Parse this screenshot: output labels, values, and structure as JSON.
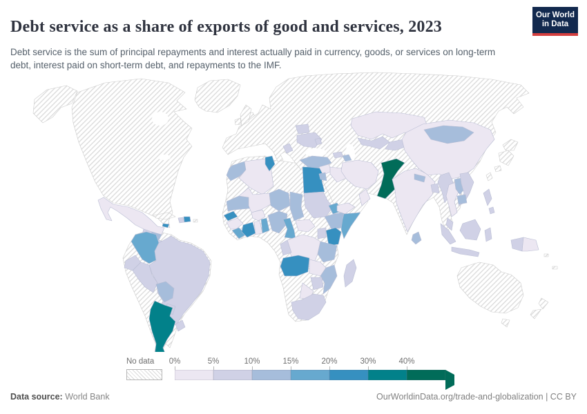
{
  "header": {
    "title": "Debt service as a share of exports of good and services, 2023",
    "subtitle": "Debt service is the sum of principal repayments and interest actually paid in currency, goods, or services on long-term debt, interest paid on short-term debt, and repayments to the IMF.",
    "logo": {
      "line1": "Our World",
      "line2": "in Data",
      "bg_color": "#12294e",
      "accent_color": "#d43f3f"
    }
  },
  "legend": {
    "no_data_label": "No data",
    "tick_labels": [
      "0%",
      "5%",
      "10%",
      "15%",
      "20%",
      "30%",
      "40%"
    ],
    "colors": [
      "#ece7f2",
      "#d0d1e6",
      "#a6bddb",
      "#67a9cf",
      "#3690c0",
      "#02818a",
      "#016c59"
    ],
    "bin_labels": [
      "0–5%",
      "5–10%",
      "10–15%",
      "15–20%",
      "20–30%",
      "30–40%",
      ">40%"
    ],
    "no_data_pattern": "diagonal-hatch"
  },
  "footer": {
    "source_label": "Data source:",
    "source_value": " World Bank",
    "attribution": "OurWorldinData.org/trade-and-globalization | CC BY"
  },
  "map": {
    "country_bins": {
      "mexico": 0,
      "guatemala": 1,
      "honduras": 2,
      "nicaragua": 1,
      "costa-rica": 3,
      "panama": 1,
      "jamaica": 4,
      "haiti": 1,
      "dominican-republic": 4,
      "colombia": 3,
      "guyana-suriname": 0,
      "ecuador": 1,
      "peru": 1,
      "brazil": 1,
      "bolivia": 2,
      "paraguay": 1,
      "uruguay": 1,
      "argentina": 5,
      "morocco": 2,
      "algeria": 0,
      "tunisia": 4,
      "egypt": 4,
      "mauritania": 2,
      "mali": 0,
      "senegal": 4,
      "guinea": 0,
      "sierra-leone-liberia": 3,
      "cote-divoire": 4,
      "ghana": 0,
      "togo-benin": 3,
      "burkina-faso": 0,
      "niger": 2,
      "nigeria": 2,
      "chad": 2,
      "sudan": 1,
      "eritrea-djibouti": 3,
      "ethiopia": 2,
      "somalia": 3,
      "kenya": 4,
      "uganda": 1,
      "central-african-republic": 0,
      "cameroon": 3,
      "drc": 0,
      "congo": 1,
      "tanzania": 2,
      "angola": 4,
      "zambia": 0,
      "mozambique": 2,
      "zimbabwe": 1,
      "botswana": 0,
      "south-africa": 1,
      "madagascar": 1,
      "belarus": 1,
      "ukraine": 1,
      "moldova": 1,
      "balkans": 1,
      "turkey": 2,
      "georgia-armenia": 1,
      "azerbaijan": 2,
      "syria": 0,
      "jordan": 2,
      "iraq": 0,
      "iran": 0,
      "yemen": 0,
      "oman": 0,
      "kazakhstan": 0,
      "uzbekistan": 1,
      "kyrgyzstan-tajikistan": 1,
      "pakistan": 6,
      "india": 0,
      "nepal": 2,
      "bangladesh": 1,
      "sri-lanka": 2,
      "china": 0,
      "mongolia": 2,
      "myanmar": 1,
      "thailand": 0,
      "laos": 2,
      "vietnam": 1,
      "cambodia": 2,
      "malaysia": 1,
      "indonesia-sumatra": 1,
      "indonesia-java": 1,
      "indonesia-borneo": 1,
      "indonesia-sulawesi": 1,
      "philippines": 1,
      "philippines-south": 1,
      "indonesia-papua": 1,
      "papua-new-guinea": 0
    }
  },
  "chart_data": {
    "type": "heatmap",
    "subtype": "choropleth world map",
    "title": "Debt service as a share of exports of good and services, 2023",
    "unit": "% of exports of goods and services",
    "year": 2023,
    "legend_bins": [
      "0–5%",
      "5–10%",
      "10–15%",
      "15–20%",
      "20–30%",
      "30–40%",
      ">40%",
      "No data"
    ],
    "countries_by_bin": {
      "0–5%": [
        "Mexico",
        "Guyana",
        "Algeria",
        "Mali",
        "Burkina Faso",
        "Guinea",
        "Ghana",
        "Central African Republic",
        "Democratic Republic of Congo",
        "Zambia",
        "Botswana",
        "Syria",
        "Iraq",
        "Iran",
        "Yemen",
        "Oman",
        "Kazakhstan",
        "India",
        "China",
        "Thailand",
        "Papua New Guinea"
      ],
      "5–10%": [
        "Guatemala",
        "Nicaragua",
        "Panama",
        "Haiti",
        "Ecuador",
        "Peru",
        "Brazil",
        "Paraguay",
        "Uruguay",
        "Sudan",
        "Uganda",
        "Congo",
        "Zimbabwe",
        "South Africa",
        "Madagascar",
        "Belarus",
        "Ukraine",
        "Moldova",
        "Serbia",
        "Albania",
        "Georgia",
        "Armenia",
        "Uzbekistan",
        "Kyrgyzstan",
        "Tajikistan",
        "Bangladesh",
        "Myanmar",
        "Vietnam",
        "Malaysia",
        "Indonesia",
        "Philippines"
      ],
      "10–15%": [
        "Honduras",
        "Bolivia",
        "Morocco",
        "Mauritania",
        "Niger",
        "Nigeria",
        "Chad",
        "Ethiopia",
        "Tanzania",
        "Mozambique",
        "Jordan",
        "Azerbaijan",
        "Turkey",
        "Nepal",
        "Sri Lanka",
        "Mongolia",
        "Laos",
        "Cambodia"
      ],
      "15–20%": [
        "Costa Rica",
        "Colombia",
        "Sierra Leone",
        "Liberia",
        "Togo",
        "Benin",
        "Cameroon",
        "Somalia",
        "Djibouti"
      ],
      "20–30%": [
        "Jamaica",
        "Dominican Republic",
        "Tunisia",
        "Egypt",
        "Senegal",
        "Côte d'Ivoire",
        "Kenya",
        "Angola"
      ],
      "30–40%": [
        "Argentina"
      ],
      ">40%": [
        "Pakistan"
      ],
      "No data": [
        "United States",
        "Canada",
        "Greenland",
        "Iceland",
        "Western Europe",
        "Russia",
        "Venezuela",
        "Chile",
        "Cuba",
        "Libya",
        "Western Sahara",
        "Namibia",
        "Gabon",
        "Saudi Arabia",
        "Afghanistan",
        "Turkmenistan",
        "Japan",
        "South Korea",
        "Taiwan",
        "Australia",
        "New Zealand"
      ]
    }
  }
}
